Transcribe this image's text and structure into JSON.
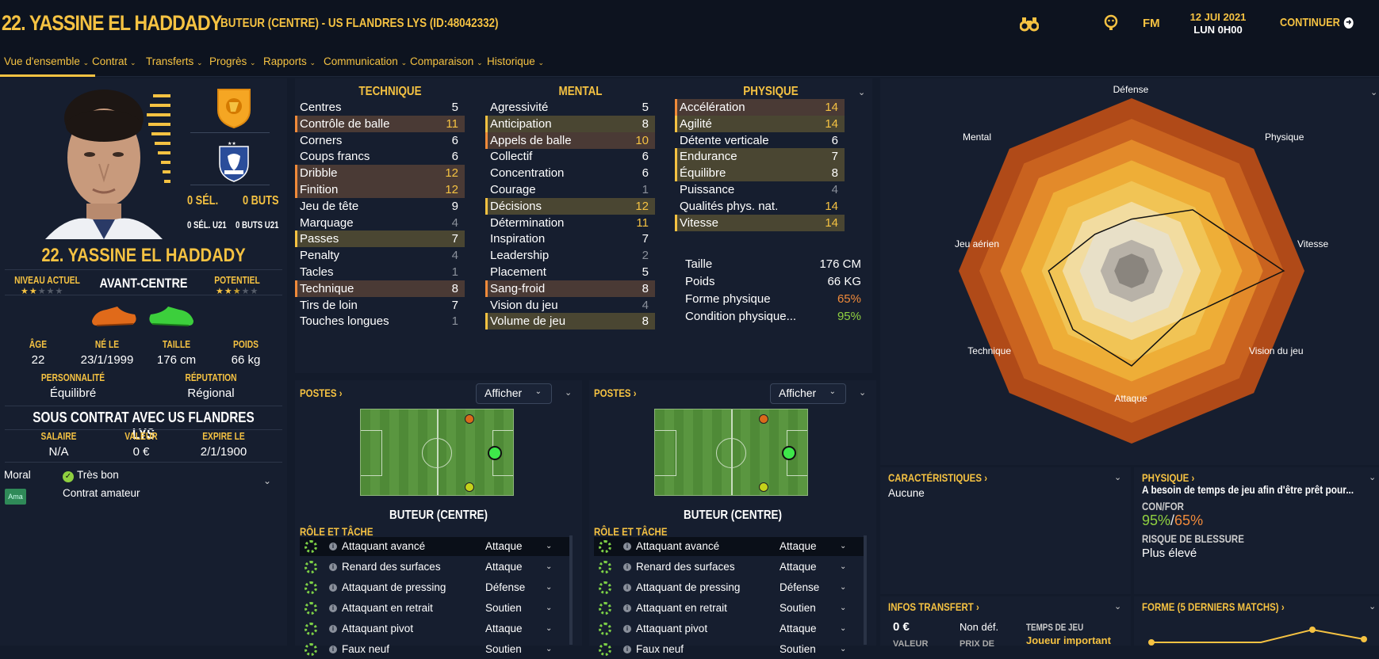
{
  "header": {
    "title": "22. YASSINE EL HADDADY",
    "subtitle": "BUTEUR (CENTRE) - US FLANDRES LYS (ID:48042332)",
    "date": "12 JUI 2021",
    "time": "LUN 0H00",
    "fm": "FM",
    "continue": "CONTINUER"
  },
  "menu": [
    "Vue d'ensemble",
    "Contrat",
    "Transferts",
    "Progrès",
    "Rapports",
    "Communication",
    "Comparaison",
    "Historique"
  ],
  "player": {
    "sel": "0 SÉL.",
    "buts": "0 BUTS",
    "sel_u21": "0 SÉL. U21",
    "buts_u21": "0 BUTS U21",
    "name": "22. YASSINE EL HADDADY",
    "position": "AVANT-CENTRE",
    "niveau_label": "NIVEAU ACTUEL",
    "potentiel_label": "POTENTIEL",
    "niveau_stars": 2,
    "potentiel_stars": 2.5,
    "age_label": "ÂGE",
    "age": "22",
    "ne_label": "NÉ LE",
    "ne": "23/1/1999",
    "taille_label": "TAILLE",
    "taille": "176 cm",
    "poids_label": "POIDS",
    "poids": "66 kg",
    "perso_label": "PERSONNALITÉ",
    "perso": "Équilibré",
    "repu_label": "RÉPUTATION",
    "repu": "Régional",
    "contract_title": "SOUS CONTRAT AVEC US FLANDRES LYS",
    "salaire_label": "SALAIRE",
    "salaire": "N/A",
    "valeur_label": "VALEUR",
    "valeur": "0 €",
    "expire_label": "EXPIRE LE",
    "expire": "2/1/1900",
    "moral_label": "Moral",
    "moral": "Très bon",
    "ama": "Ama",
    "contract_type": "Contrat amateur"
  },
  "attributes": {
    "technique_title": "TECHNIQUE",
    "mental_title": "MENTAL",
    "physique_title": "PHYSIQUE",
    "technique": [
      {
        "n": "Centres",
        "v": "5",
        "h": ""
      },
      {
        "n": "Contrôle de balle",
        "v": "11",
        "h": "o"
      },
      {
        "n": "Corners",
        "v": "6",
        "h": ""
      },
      {
        "n": "Coups francs",
        "v": "6",
        "h": ""
      },
      {
        "n": "Dribble",
        "v": "12",
        "h": "o"
      },
      {
        "n": "Finition",
        "v": "12",
        "h": "o"
      },
      {
        "n": "Jeu de tête",
        "v": "9",
        "h": ""
      },
      {
        "n": "Marquage",
        "v": "4",
        "h": ""
      },
      {
        "n": "Passes",
        "v": "7",
        "h": "y"
      },
      {
        "n": "Penalty",
        "v": "4",
        "h": ""
      },
      {
        "n": "Tacles",
        "v": "1",
        "h": ""
      },
      {
        "n": "Technique",
        "v": "8",
        "h": "o"
      },
      {
        "n": "Tirs de loin",
        "v": "7",
        "h": ""
      },
      {
        "n": "Touches longues",
        "v": "1",
        "h": ""
      }
    ],
    "mental": [
      {
        "n": "Agressivité",
        "v": "5",
        "h": ""
      },
      {
        "n": "Anticipation",
        "v": "8",
        "h": "y"
      },
      {
        "n": "Appels de balle",
        "v": "10",
        "h": "o"
      },
      {
        "n": "Collectif",
        "v": "6",
        "h": ""
      },
      {
        "n": "Concentration",
        "v": "6",
        "h": ""
      },
      {
        "n": "Courage",
        "v": "1",
        "h": ""
      },
      {
        "n": "Décisions",
        "v": "12",
        "h": "y"
      },
      {
        "n": "Détermination",
        "v": "11",
        "h": ""
      },
      {
        "n": "Inspiration",
        "v": "7",
        "h": ""
      },
      {
        "n": "Leadership",
        "v": "2",
        "h": ""
      },
      {
        "n": "Placement",
        "v": "5",
        "h": ""
      },
      {
        "n": "Sang-froid",
        "v": "8",
        "h": "o"
      },
      {
        "n": "Vision du jeu",
        "v": "4",
        "h": ""
      },
      {
        "n": "Volume de jeu",
        "v": "8",
        "h": "y"
      }
    ],
    "physique": [
      {
        "n": "Accélération",
        "v": "14",
        "h": "o"
      },
      {
        "n": "Agilité",
        "v": "14",
        "h": "y"
      },
      {
        "n": "Détente verticale",
        "v": "6",
        "h": ""
      },
      {
        "n": "Endurance",
        "v": "7",
        "h": "y"
      },
      {
        "n": "Équilibre",
        "v": "8",
        "h": "y"
      },
      {
        "n": "Puissance",
        "v": "4",
        "h": ""
      },
      {
        "n": "Qualités phys. nat.",
        "v": "14",
        "h": ""
      },
      {
        "n": "Vitesse",
        "v": "14",
        "h": "y"
      }
    ],
    "taille_label": "Taille",
    "taille": "176 CM",
    "poids_label": "Poids",
    "poids": "66 KG",
    "forme_label": "Forme physique",
    "forme": "65%",
    "condition_label": "Condition physique...",
    "condition": "95%"
  },
  "positions": {
    "title": "POSTES",
    "show": "Afficher",
    "role_label": "BUTEUR (CENTRE)",
    "role_title": "RÔLE ET TÂCHE",
    "roles": [
      {
        "n": "Attaquant avancé",
        "d": "Attaque"
      },
      {
        "n": "Renard des surfaces",
        "d": "Attaque"
      },
      {
        "n": "Attaquant de pressing",
        "d": "Défense"
      },
      {
        "n": "Attaquant en retrait",
        "d": "Soutien"
      },
      {
        "n": "Attaquant pivot",
        "d": "Attaque"
      },
      {
        "n": "Faux neuf",
        "d": "Soutien"
      }
    ]
  },
  "radar": {
    "labels": [
      "Défense",
      "Physique",
      "Vitesse",
      "Vision du jeu",
      "Attaque",
      "Technique",
      "Jeu aérien",
      "Mental"
    ],
    "values": [
      0.3,
      0.5,
      0.88,
      0.4,
      0.55,
      0.48,
      0.48,
      0.3
    ]
  },
  "bottom": {
    "carac_title": "CARACTÉRISTIQUES",
    "carac": "Aucune",
    "phys_title": "PHYSIQUE",
    "phys_text": "A besoin de temps de jeu afin d'être prêt pour...",
    "confor_label": "CON/FOR",
    "con": "95%",
    "for": "65%",
    "risque_label": "RISQUE DE BLESSURE",
    "risque": "Plus élevé",
    "transfer_title": "INFOS TRANSFERT",
    "transfer_val": "0 €",
    "transfer_nondef": "Non déf.",
    "transfer_valeur": "VALEUR",
    "transfer_prix": "PRIX DE",
    "temps_label": "TEMPS DE JEU",
    "temps": "Joueur important",
    "forme_title": "FORME (5 DERNIERS MATCHS)"
  },
  "colors": {
    "accent": "#f5c242",
    "panel": "#161e2f",
    "bg": "#131b2b"
  }
}
